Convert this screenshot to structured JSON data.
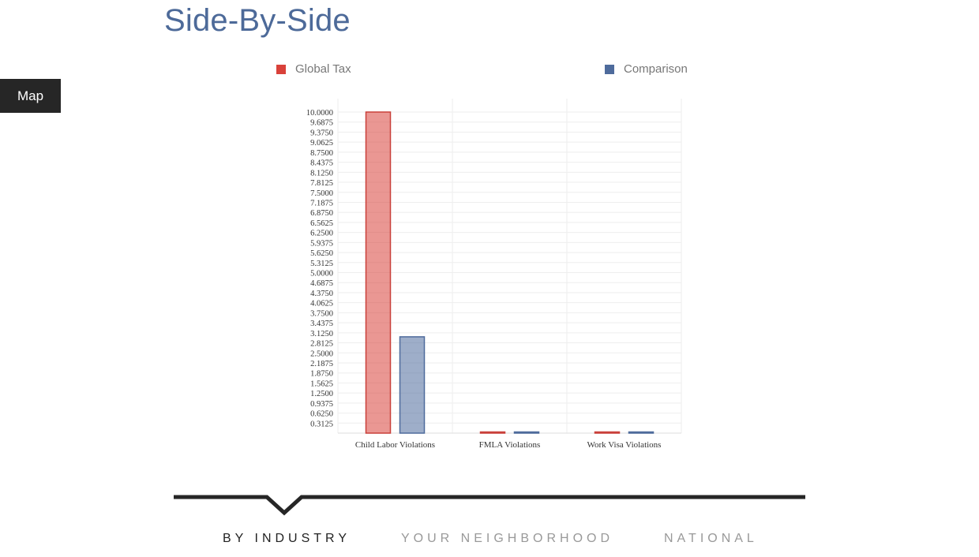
{
  "page": {
    "title": "Side-By-Side",
    "map_button": "Map"
  },
  "colors": {
    "title": "#4d6a99",
    "global_tax": "#d9413a",
    "comparison": "#4e6b9c",
    "nav_active": "#222222",
    "nav_inactive": "#999999"
  },
  "chart_data": {
    "type": "bar",
    "title": "",
    "xlabel": "",
    "ylabel": "",
    "categories": [
      "Child Labor Violations",
      "FMLA Violations",
      "Work Visa Violations"
    ],
    "series": [
      {
        "name": "Global Tax",
        "values": [
          10.0,
          0,
          0
        ]
      },
      {
        "name": "Comparison",
        "values": [
          3.0,
          0,
          0
        ]
      }
    ],
    "ylim": [
      0,
      10.0
    ],
    "yticks": [
      "0.3125",
      "0.6250",
      "0.9375",
      "1.2500",
      "1.5625",
      "1.8750",
      "2.1875",
      "2.5000",
      "2.8125",
      "3.1250",
      "3.4375",
      "3.7500",
      "4.0625",
      "4.3750",
      "4.6875",
      "5.0000",
      "5.3125",
      "5.6250",
      "5.9375",
      "6.2500",
      "6.5625",
      "6.8750",
      "7.1875",
      "7.5000",
      "7.8125",
      "8.1250",
      "8.4375",
      "8.7500",
      "9.0625",
      "9.3750",
      "9.6875",
      "10.0000"
    ],
    "grid": true,
    "legend_position": "top"
  },
  "nav": {
    "tabs": [
      {
        "label": "BY INDUSTRY",
        "active": true
      },
      {
        "label": "YOUR NEIGHBORHOOD",
        "active": false
      },
      {
        "label": "NATIONAL",
        "active": false
      }
    ]
  }
}
